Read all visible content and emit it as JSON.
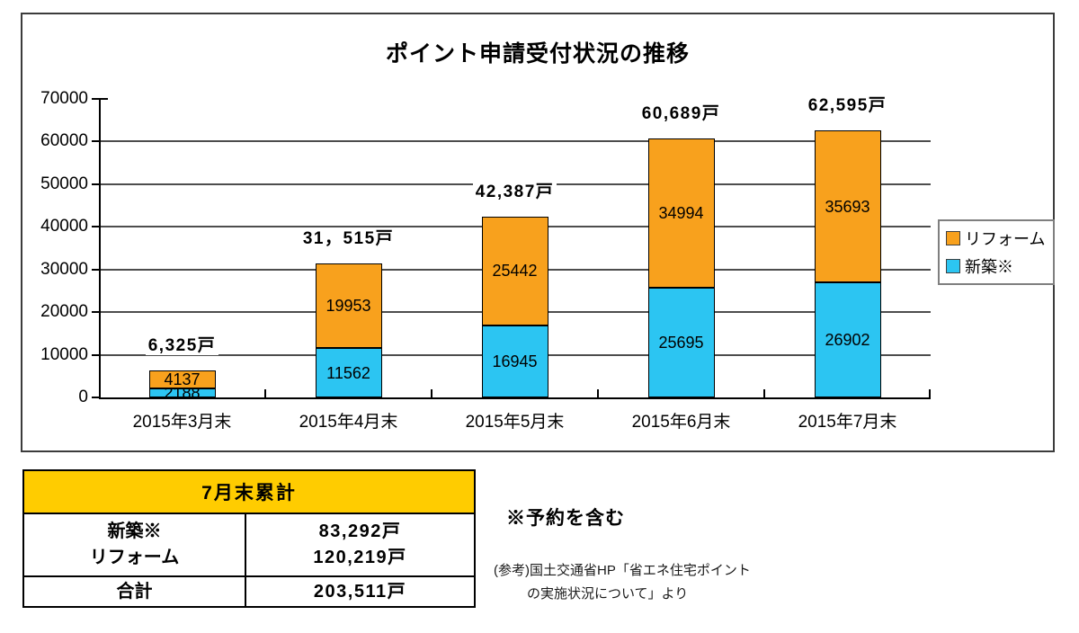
{
  "chart_data": {
    "type": "bar",
    "stacked": true,
    "title": "ポイント申請受付状況の推移",
    "categories": [
      "2015年3月末",
      "2015年4月末",
      "2015年5月末",
      "2015年6月末",
      "2015年7月末"
    ],
    "series": [
      {
        "name": "新築※",
        "color": "#2CC5F2",
        "values": [
          2188,
          11562,
          16945,
          25695,
          26902
        ]
      },
      {
        "name": "リフォーム",
        "color": "#F8A11D",
        "values": [
          4137,
          19953,
          25442,
          34994,
          35693
        ]
      }
    ],
    "total_labels": [
      "6,325戸",
      "31，515戸",
      "42,387戸",
      "60,689戸",
      "62,595戸"
    ],
    "legend": [
      {
        "label": "リフォーム",
        "color": "#F8A11D"
      },
      {
        "label": "新築※",
        "color": "#2CC5F2"
      }
    ],
    "ylim": [
      0,
      70000
    ],
    "yticks": [
      0,
      10000,
      20000,
      30000,
      40000,
      50000,
      60000,
      70000
    ],
    "grid": true,
    "legend_position": "right",
    "xlabel": "",
    "ylabel": ""
  },
  "summary_table": {
    "header": "7月末累計",
    "rows": [
      {
        "label_lines": [
          "新築※",
          "リフォーム"
        ],
        "value_lines": [
          "83,292戸",
          "120,219戸"
        ]
      },
      {
        "label_lines": [
          "合計"
        ],
        "value_lines": [
          "203,511戸"
        ]
      }
    ]
  },
  "notes": {
    "asterisk_note": "※予約を含む",
    "reference_line1": "(参考)国土交通省HP「省エネ住宅ポイント",
    "reference_line2": "の実施状況について」より"
  }
}
